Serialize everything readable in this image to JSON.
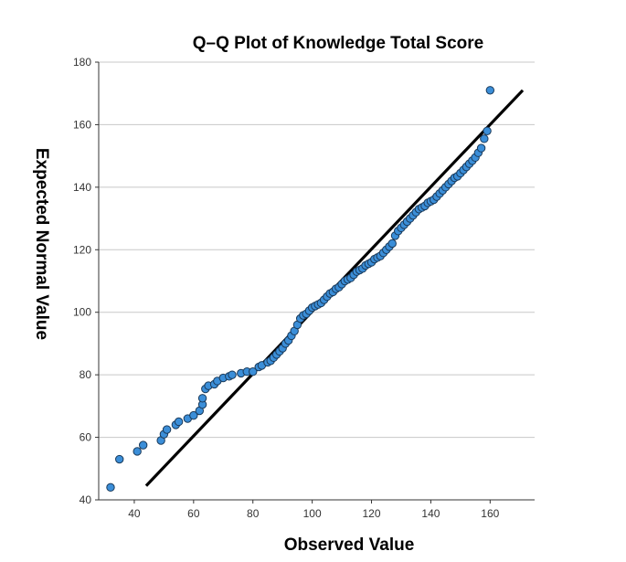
{
  "chart_data": {
    "type": "scatter",
    "title": "Q–Q Plot of Knowledge Total Score",
    "xlabel": "Observed Value",
    "ylabel": "Expected Normal Value",
    "xlim": [
      28,
      175
    ],
    "ylim": [
      40,
      180
    ],
    "xticks": [
      40,
      60,
      80,
      100,
      120,
      140,
      160
    ],
    "yticks": [
      40,
      60,
      80,
      100,
      120,
      140,
      160,
      180
    ],
    "grid": "horizontal",
    "reference_line": {
      "x": [
        44,
        171
      ],
      "y": [
        44.5,
        171
      ]
    },
    "point_color": "#3b8ed8",
    "points": [
      [
        32,
        44
      ],
      [
        35,
        53
      ],
      [
        41,
        55.5
      ],
      [
        43,
        57.5
      ],
      [
        49,
        59
      ],
      [
        50,
        61
      ],
      [
        51,
        62.5
      ],
      [
        54,
        64
      ],
      [
        55,
        65
      ],
      [
        58,
        66
      ],
      [
        60,
        67
      ],
      [
        62,
        68.5
      ],
      [
        63,
        70.5
      ],
      [
        63,
        72.5
      ],
      [
        64,
        75.5
      ],
      [
        65,
        76.5
      ],
      [
        67,
        77
      ],
      [
        68,
        78
      ],
      [
        70,
        79
      ],
      [
        72,
        79.5
      ],
      [
        73,
        80
      ],
      [
        76,
        80.5
      ],
      [
        78,
        81
      ],
      [
        80,
        81
      ],
      [
        82,
        82.5
      ],
      [
        83,
        83
      ],
      [
        85,
        84
      ],
      [
        86,
        84.5
      ],
      [
        87,
        85.5
      ],
      [
        88,
        86.5
      ],
      [
        89,
        87.5
      ],
      [
        90,
        88.5
      ],
      [
        91,
        90
      ],
      [
        92,
        91
      ],
      [
        93,
        92.5
      ],
      [
        94,
        94
      ],
      [
        95,
        96
      ],
      [
        96,
        98
      ],
      [
        97,
        99
      ],
      [
        98,
        99.5
      ],
      [
        99,
        100.5
      ],
      [
        100,
        101.5
      ],
      [
        101,
        102
      ],
      [
        102,
        102.5
      ],
      [
        103,
        103
      ],
      [
        104,
        104
      ],
      [
        105,
        105
      ],
      [
        106,
        106
      ],
      [
        107,
        106.5
      ],
      [
        108,
        107.5
      ],
      [
        109,
        108
      ],
      [
        110,
        109
      ],
      [
        111,
        110
      ],
      [
        112,
        110.5
      ],
      [
        113,
        111
      ],
      [
        114,
        112
      ],
      [
        115,
        113
      ],
      [
        116,
        113.5
      ],
      [
        117,
        114
      ],
      [
        118,
        115
      ],
      [
        119,
        115.5
      ],
      [
        120,
        116
      ],
      [
        121,
        117
      ],
      [
        122,
        117.5
      ],
      [
        123,
        118
      ],
      [
        124,
        119
      ],
      [
        125,
        120
      ],
      [
        126,
        121
      ],
      [
        127,
        122
      ],
      [
        128,
        124.5
      ],
      [
        129,
        126
      ],
      [
        130,
        127
      ],
      [
        131,
        128
      ],
      [
        132,
        129
      ],
      [
        133,
        130
      ],
      [
        134,
        131
      ],
      [
        135,
        132
      ],
      [
        136,
        133
      ],
      [
        137,
        133.5
      ],
      [
        138,
        134
      ],
      [
        139,
        135
      ],
      [
        140,
        135.5
      ],
      [
        141,
        136
      ],
      [
        142,
        137
      ],
      [
        143,
        138
      ],
      [
        144,
        139
      ],
      [
        145,
        140
      ],
      [
        146,
        141
      ],
      [
        147,
        142
      ],
      [
        148,
        143
      ],
      [
        149,
        143.5
      ],
      [
        150,
        144.5
      ],
      [
        151,
        145.5
      ],
      [
        152,
        146.5
      ],
      [
        153,
        147.5
      ],
      [
        154,
        148.5
      ],
      [
        155,
        149.5
      ],
      [
        156,
        151
      ],
      [
        157,
        152.5
      ],
      [
        158,
        155.5
      ],
      [
        159,
        158
      ],
      [
        160,
        171
      ]
    ]
  }
}
